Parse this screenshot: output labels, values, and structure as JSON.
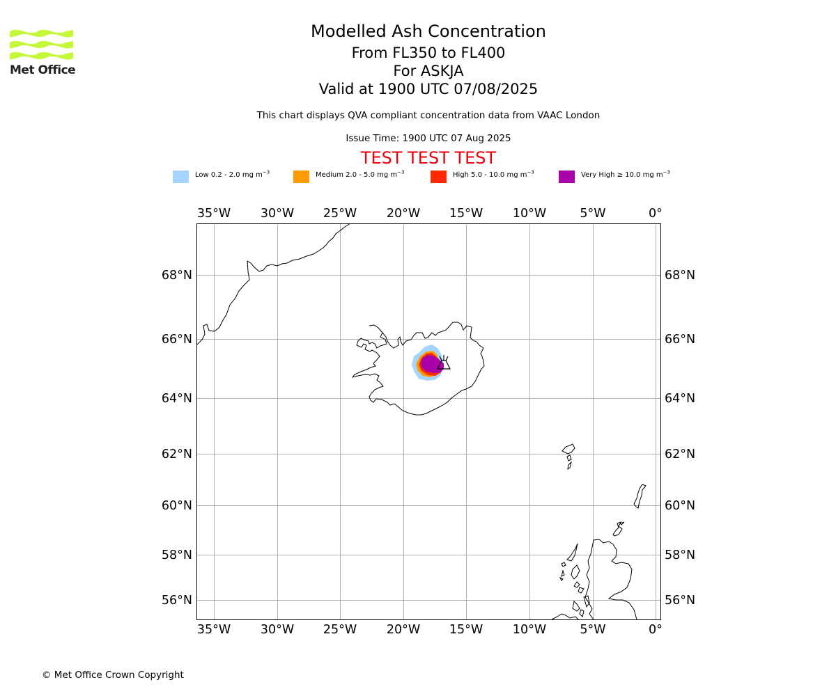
{
  "logo": {
    "text": "Met Office",
    "icon": "met-office-wave-logo"
  },
  "header": {
    "title": "Modelled Ash Concentration",
    "levels": "From FL350 to FL400",
    "volcano": "For ASKJA",
    "valid": "Valid at 1900 UTC 07/08/2025",
    "note": "This chart displays QVA compliant concentration data from VAAC London",
    "issue_time": "Issue Time: 1900 UTC 07 Aug 2025",
    "test_banner": "TEST TEST TEST"
  },
  "legend": [
    {
      "label": "Low 0.2 - 2.0 mg m",
      "exp": "−3",
      "color": "#a4d4ff"
    },
    {
      "label": "Medium 2.0 - 5.0 mg m",
      "exp": "−3",
      "color": "#ff9a00"
    },
    {
      "label": "High 5.0 - 10.0 mg m",
      "exp": "−3",
      "color": "#ff2a00"
    },
    {
      "label": "Very High  ≥  10.0 mg m",
      "exp": "−3",
      "color": "#aa00aa"
    }
  ],
  "map": {
    "lon_ticks": [
      "35°W",
      "30°W",
      "25°W",
      "20°W",
      "15°W",
      "10°W",
      "5°W",
      "0°"
    ],
    "lat_ticks": [
      "68°N",
      "66°N",
      "64°N",
      "62°N",
      "60°N",
      "58°N",
      "56°N"
    ],
    "grid": true,
    "volcano_symbol": "volcano-icon",
    "volcano_name": "ASKJA"
  },
  "footer": {
    "copyright": "© Met Office Crown Copyright"
  }
}
